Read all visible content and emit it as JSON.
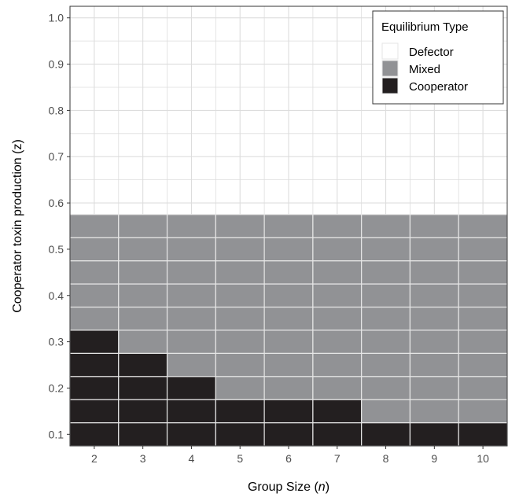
{
  "chart_data": {
    "type": "heatmap",
    "title": "",
    "xlabel": "Group Size (",
    "xlabel_var": "n",
    "xlabel_suffix": ")",
    "ylabel": "Cooperator toxin production (z)",
    "x_ticks": [
      "2",
      "3",
      "4",
      "5",
      "6",
      "7",
      "8",
      "9",
      "10"
    ],
    "y_ticks": [
      "0.1",
      "0.2",
      "0.3",
      "0.4",
      "0.5",
      "0.6",
      "0.7",
      "0.8",
      "0.9",
      "1.0"
    ],
    "x_range": [
      1.5,
      10.5
    ],
    "y_range": [
      0.075,
      1.025
    ],
    "z_values": [
      0.1,
      0.15,
      0.2,
      0.25,
      0.3,
      0.35,
      0.4,
      0.45,
      0.5,
      0.55,
      0.6,
      0.65,
      0.7,
      0.75,
      0.8,
      0.85,
      0.9,
      0.95,
      1.0
    ],
    "group_sizes": [
      2,
      3,
      4,
      5,
      6,
      7,
      8,
      9,
      10
    ],
    "cooperator_max_z": [
      0.3,
      0.25,
      0.2,
      0.15,
      0.15,
      0.15,
      0.1,
      0.1,
      0.1
    ],
    "mixed_max_z": [
      0.55,
      0.55,
      0.55,
      0.55,
      0.55,
      0.55,
      0.55,
      0.55,
      0.55
    ],
    "categories": [
      "Defector",
      "Mixed",
      "Cooperator"
    ],
    "colors": {
      "Defector": "#ffffff",
      "Mixed": "#919295",
      "Cooperator": "#231f20",
      "gridline": "#dddddd",
      "cell_border": "#e6e6e6"
    },
    "legend": {
      "title": "Equilibrium Type",
      "position": "top-right",
      "entries": [
        "Defector",
        "Mixed",
        "Cooperator"
      ]
    },
    "grid": true
  }
}
